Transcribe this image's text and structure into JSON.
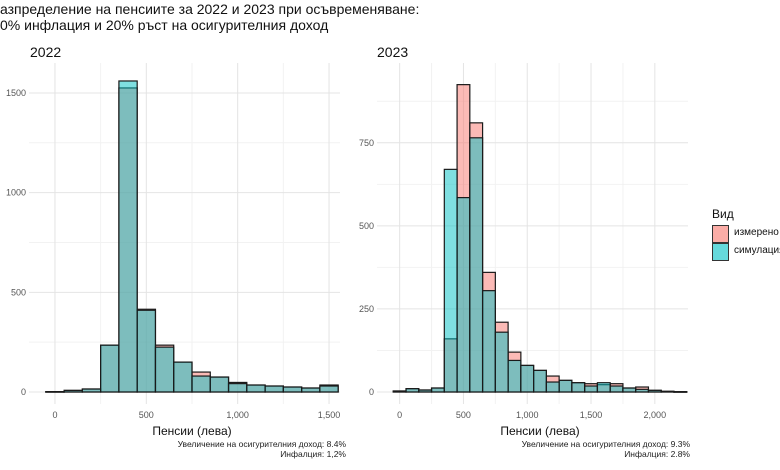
{
  "title_line1": "азпределение на пенсиите за 2022 и 2023 при осъвременяване:",
  "title_line2": "0% инфлация и 20% ръст на осигурителния доход",
  "legend": {
    "title": "Вид",
    "items": [
      "измерено",
      "симулация"
    ]
  },
  "colors": {
    "measured": "#F8766D",
    "simulated": "#00BFC4"
  },
  "chart_data": [
    {
      "type": "bar",
      "title": "2022",
      "xlabel": "Пенсии (лева)",
      "ylabel": "",
      "xlim": [
        -60,
        1560
      ],
      "ylim": [
        0,
        1600
      ],
      "xticks": [
        0,
        500,
        1000,
        1500
      ],
      "xtick_labels": [
        "0",
        "500",
        "1,000",
        "1,500"
      ],
      "yticks": [
        0,
        500,
        1000,
        1500
      ],
      "ytick_labels": [
        "0",
        "500",
        "1000",
        "1500"
      ],
      "bin_width": 100,
      "bin_centers": [
        0,
        100,
        200,
        300,
        400,
        500,
        600,
        700,
        800,
        900,
        1000,
        1100,
        1200,
        1300,
        1400,
        1500
      ],
      "series": [
        {
          "name": "измерено",
          "values": [
            2,
            8,
            15,
            235,
            1525,
            415,
            235,
            150,
            100,
            75,
            48,
            35,
            30,
            25,
            20,
            35
          ]
        },
        {
          "name": "симулация",
          "values": [
            2,
            8,
            15,
            235,
            1560,
            410,
            225,
            150,
            80,
            75,
            42,
            35,
            30,
            25,
            20,
            30
          ]
        }
      ],
      "caption_line1": "Увеличение на осигурителния доход: 8.4%",
      "caption_line2": "Инфалция: 1,2%"
    },
    {
      "type": "bar",
      "title": "2023",
      "xlabel": "Пенсии (лева)",
      "ylabel": "",
      "xlim": [
        -60,
        2260
      ],
      "ylim": [
        0,
        960
      ],
      "xticks": [
        0,
        500,
        1000,
        1500,
        2000
      ],
      "xtick_labels": [
        "0",
        "500",
        "1,000",
        "1,500",
        "2,000"
      ],
      "yticks": [
        0,
        250,
        500,
        750
      ],
      "ytick_labels": [
        "0",
        "250",
        "500",
        "750"
      ],
      "bin_width": 100,
      "bin_centers": [
        0,
        100,
        200,
        300,
        400,
        500,
        600,
        700,
        800,
        900,
        1000,
        1100,
        1200,
        1300,
        1400,
        1500,
        1600,
        1700,
        1800,
        1900,
        2000,
        2100,
        2200
      ],
      "series": [
        {
          "name": "измерено",
          "values": [
            3,
            10,
            6,
            12,
            160,
            925,
            810,
            360,
            210,
            120,
            80,
            65,
            48,
            35,
            28,
            25,
            22,
            25,
            12,
            15,
            5,
            2,
            1
          ]
        },
        {
          "name": "симулация",
          "values": [
            3,
            10,
            6,
            12,
            670,
            585,
            765,
            305,
            180,
            95,
            80,
            65,
            30,
            35,
            28,
            18,
            28,
            18,
            12,
            8,
            5,
            2,
            1
          ]
        }
      ],
      "caption_line1": "Увеличение на осигурителния доход: 9.3%",
      "caption_line2": "Инфалция: 2.8%"
    }
  ]
}
